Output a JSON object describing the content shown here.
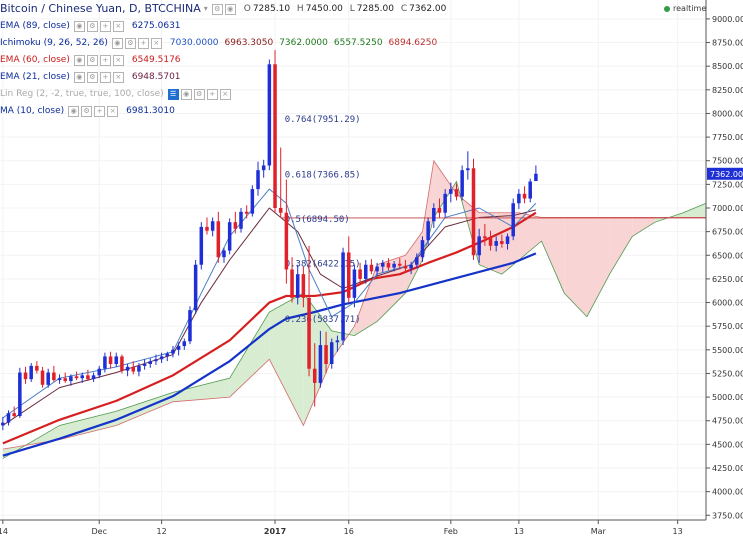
{
  "header": {
    "title": "Bitcoin / Chinese Yuan, D, BTCCHINA",
    "ohlc": [
      {
        "k": "O",
        "v": "7285.10"
      },
      {
        "k": "H",
        "v": "7450.00"
      },
      {
        "k": "L",
        "v": "7285.00"
      },
      {
        "k": "C",
        "v": "7362.00"
      }
    ],
    "realtime": "realtime"
  },
  "indicators": [
    {
      "name": "EMA (89, close)",
      "color": "#0b2b9c",
      "values": [
        {
          "text": "6275.0631",
          "color": "#0b2b9c"
        }
      ]
    },
    {
      "name": "Ichimoku (9, 26, 52, 26)",
      "color": "#0b2b9c",
      "values": [
        {
          "text": "7030.0000",
          "color": "#1f53c7"
        },
        {
          "text": "6963.3050",
          "color": "#8a1a1a"
        },
        {
          "text": "7362.0000",
          "color": "#1f7a1f"
        },
        {
          "text": "6557.5250",
          "color": "#1f7a1f"
        },
        {
          "text": "6894.6250",
          "color": "#c03030"
        }
      ]
    },
    {
      "name": "EMA (60, close)",
      "color": "#cc1a1a",
      "values": [
        {
          "text": "6549.5176",
          "color": "#cc1a1a"
        }
      ]
    },
    {
      "name": "EMA (21, close)",
      "color": "#0b2b9c",
      "values": [
        {
          "text": "6948.5701",
          "color": "#6b1e3e"
        }
      ]
    },
    {
      "name": "Lin Reg (2, -2, true, true, 100, close)",
      "color": "#aaaaaa",
      "values": []
    },
    {
      "name": "MA (10, close)",
      "color": "#0b2b9c",
      "values": [
        {
          "text": "6981.3010",
          "color": "#0b2b9c"
        }
      ]
    }
  ],
  "chart_data": {
    "type": "candlestick",
    "y_axis": {
      "ylim": [
        3700,
        9200
      ],
      "ticks": [
        "9000.00",
        "8750.00",
        "8500.00",
        "8250.00",
        "8000.00",
        "7750.00",
        "7500.00",
        "7250.00",
        "7000.00",
        "6750.00",
        "6500.00",
        "6250.00",
        "6000.00",
        "5750.00",
        "5500.00",
        "5250.00",
        "5000.00",
        "4750.00",
        "4500.00",
        "4250.00",
        "4000.00",
        "3750.00"
      ],
      "last_price": "7362.00",
      "last_price_value": 7362
    },
    "x_axis": {
      "labels": [
        "14",
        "Dec",
        "12",
        "2017",
        "16",
        "Feb",
        "13",
        "Mar",
        "13"
      ],
      "label_days": [
        0,
        17,
        28,
        48,
        61,
        79,
        91,
        105,
        119
      ]
    },
    "candles": [
      {
        "d": 0,
        "o": 4700,
        "h": 4790,
        "l": 4650,
        "c": 4730
      },
      {
        "d": 1,
        "o": 4730,
        "h": 4860,
        "l": 4700,
        "c": 4830
      },
      {
        "d": 2,
        "o": 4830,
        "h": 4900,
        "l": 4780,
        "c": 4800
      },
      {
        "d": 3,
        "o": 4800,
        "h": 5310,
        "l": 4780,
        "c": 5260
      },
      {
        "d": 4,
        "o": 5260,
        "h": 5320,
        "l": 5140,
        "c": 5190
      },
      {
        "d": 5,
        "o": 5190,
        "h": 5360,
        "l": 5160,
        "c": 5330
      },
      {
        "d": 6,
        "o": 5330,
        "h": 5380,
        "l": 5250,
        "c": 5280
      },
      {
        "d": 7,
        "o": 5280,
        "h": 5320,
        "l": 5100,
        "c": 5130
      },
      {
        "d": 8,
        "o": 5130,
        "h": 5300,
        "l": 5100,
        "c": 5260
      },
      {
        "d": 9,
        "o": 5260,
        "h": 5330,
        "l": 5160,
        "c": 5180
      },
      {
        "d": 10,
        "o": 5180,
        "h": 5240,
        "l": 5140,
        "c": 5200
      },
      {
        "d": 11,
        "o": 5200,
        "h": 5260,
        "l": 5150,
        "c": 5170
      },
      {
        "d": 12,
        "o": 5170,
        "h": 5240,
        "l": 5120,
        "c": 5220
      },
      {
        "d": 13,
        "o": 5220,
        "h": 5270,
        "l": 5180,
        "c": 5200
      },
      {
        "d": 14,
        "o": 5200,
        "h": 5260,
        "l": 5150,
        "c": 5230
      },
      {
        "d": 15,
        "o": 5230,
        "h": 5290,
        "l": 5170,
        "c": 5190
      },
      {
        "d": 16,
        "o": 5190,
        "h": 5260,
        "l": 5160,
        "c": 5230
      },
      {
        "d": 17,
        "o": 5230,
        "h": 5330,
        "l": 5200,
        "c": 5300
      },
      {
        "d": 18,
        "o": 5300,
        "h": 5470,
        "l": 5260,
        "c": 5430
      },
      {
        "d": 19,
        "o": 5430,
        "h": 5480,
        "l": 5300,
        "c": 5350
      },
      {
        "d": 20,
        "o": 5350,
        "h": 5470,
        "l": 5320,
        "c": 5430
      },
      {
        "d": 21,
        "o": 5430,
        "h": 5450,
        "l": 5250,
        "c": 5280
      },
      {
        "d": 22,
        "o": 5280,
        "h": 5350,
        "l": 5220,
        "c": 5320
      },
      {
        "d": 23,
        "o": 5320,
        "h": 5380,
        "l": 5240,
        "c": 5270
      },
      {
        "d": 24,
        "o": 5270,
        "h": 5360,
        "l": 5220,
        "c": 5330
      },
      {
        "d": 25,
        "o": 5330,
        "h": 5400,
        "l": 5290,
        "c": 5350
      },
      {
        "d": 26,
        "o": 5350,
        "h": 5410,
        "l": 5310,
        "c": 5380
      },
      {
        "d": 27,
        "o": 5380,
        "h": 5450,
        "l": 5340,
        "c": 5400
      },
      {
        "d": 28,
        "o": 5400,
        "h": 5470,
        "l": 5360,
        "c": 5430
      },
      {
        "d": 29,
        "o": 5430,
        "h": 5480,
        "l": 5380,
        "c": 5460
      },
      {
        "d": 30,
        "o": 5460,
        "h": 5540,
        "l": 5420,
        "c": 5500
      },
      {
        "d": 31,
        "o": 5500,
        "h": 5580,
        "l": 5440,
        "c": 5540
      },
      {
        "d": 32,
        "o": 5540,
        "h": 5620,
        "l": 5500,
        "c": 5590
      },
      {
        "d": 33,
        "o": 5590,
        "h": 5960,
        "l": 5560,
        "c": 5920
      },
      {
        "d": 34,
        "o": 5920,
        "h": 6450,
        "l": 5880,
        "c": 6400
      },
      {
        "d": 35,
        "o": 6400,
        "h": 6850,
        "l": 6350,
        "c": 6800
      },
      {
        "d": 36,
        "o": 6800,
        "h": 6900,
        "l": 6720,
        "c": 6760
      },
      {
        "d": 37,
        "o": 6760,
        "h": 6900,
        "l": 6700,
        "c": 6860
      },
      {
        "d": 38,
        "o": 6860,
        "h": 6960,
        "l": 6420,
        "c": 6480
      },
      {
        "d": 39,
        "o": 6480,
        "h": 6580,
        "l": 6420,
        "c": 6550
      },
      {
        "d": 40,
        "o": 6550,
        "h": 6890,
        "l": 6510,
        "c": 6850
      },
      {
        "d": 41,
        "o": 6850,
        "h": 6960,
        "l": 6730,
        "c": 6780
      },
      {
        "d": 42,
        "o": 6780,
        "h": 7000,
        "l": 6740,
        "c": 6960
      },
      {
        "d": 43,
        "o": 6960,
        "h": 7030,
        "l": 6890,
        "c": 6940
      },
      {
        "d": 44,
        "o": 6940,
        "h": 7240,
        "l": 6910,
        "c": 7200
      },
      {
        "d": 45,
        "o": 7200,
        "h": 7490,
        "l": 7130,
        "c": 7400
      },
      {
        "d": 46,
        "o": 7400,
        "h": 7510,
        "l": 7320,
        "c": 7450
      },
      {
        "d": 47,
        "o": 7450,
        "h": 8570,
        "l": 7400,
        "c": 8520
      },
      {
        "d": 48,
        "o": 8520,
        "h": 8670,
        "l": 6950,
        "c": 7000
      },
      {
        "d": 49,
        "o": 7000,
        "h": 7640,
        "l": 6900,
        "c": 6950
      },
      {
        "d": 50,
        "o": 6950,
        "h": 7300,
        "l": 6200,
        "c": 6350
      },
      {
        "d": 51,
        "o": 6350,
        "h": 6480,
        "l": 6000,
        "c": 6050
      },
      {
        "d": 52,
        "o": 6050,
        "h": 6400,
        "l": 5980,
        "c": 6300
      },
      {
        "d": 53,
        "o": 6300,
        "h": 6380,
        "l": 5950,
        "c": 6050
      },
      {
        "d": 54,
        "o": 6050,
        "h": 6600,
        "l": 5220,
        "c": 5300
      },
      {
        "d": 55,
        "o": 5300,
        "h": 5570,
        "l": 4900,
        "c": 5150
      },
      {
        "d": 56,
        "o": 5150,
        "h": 5700,
        "l": 5100,
        "c": 5550
      },
      {
        "d": 57,
        "o": 5550,
        "h": 5690,
        "l": 5250,
        "c": 5350
      },
      {
        "d": 58,
        "o": 5350,
        "h": 5620,
        "l": 5300,
        "c": 5580
      },
      {
        "d": 59,
        "o": 5580,
        "h": 5650,
        "l": 5480,
        "c": 5600
      },
      {
        "d": 60,
        "o": 5600,
        "h": 6580,
        "l": 5550,
        "c": 6530
      },
      {
        "d": 61,
        "o": 6530,
        "h": 6700,
        "l": 6000,
        "c": 6050
      },
      {
        "d": 62,
        "o": 6050,
        "h": 6400,
        "l": 5950,
        "c": 6350
      },
      {
        "d": 63,
        "o": 6350,
        "h": 6420,
        "l": 6200,
        "c": 6250
      },
      {
        "d": 64,
        "o": 6250,
        "h": 6450,
        "l": 6200,
        "c": 6400
      },
      {
        "d": 65,
        "o": 6400,
        "h": 6460,
        "l": 6300,
        "c": 6330
      },
      {
        "d": 66,
        "o": 6330,
        "h": 6420,
        "l": 6280,
        "c": 6380
      },
      {
        "d": 67,
        "o": 6380,
        "h": 6450,
        "l": 6320,
        "c": 6420
      },
      {
        "d": 68,
        "o": 6420,
        "h": 6470,
        "l": 6340,
        "c": 6370
      },
      {
        "d": 69,
        "o": 6370,
        "h": 6440,
        "l": 6330,
        "c": 6410
      },
      {
        "d": 70,
        "o": 6410,
        "h": 6470,
        "l": 6350,
        "c": 6390
      },
      {
        "d": 71,
        "o": 6390,
        "h": 6450,
        "l": 6320,
        "c": 6360
      },
      {
        "d": 72,
        "o": 6360,
        "h": 6430,
        "l": 6300,
        "c": 6400
      },
      {
        "d": 73,
        "o": 6400,
        "h": 6520,
        "l": 6360,
        "c": 6480
      },
      {
        "d": 74,
        "o": 6480,
        "h": 6700,
        "l": 6430,
        "c": 6660
      },
      {
        "d": 75,
        "o": 6660,
        "h": 6900,
        "l": 6600,
        "c": 6860
      },
      {
        "d": 76,
        "o": 6860,
        "h": 7050,
        "l": 6790,
        "c": 7000
      },
      {
        "d": 77,
        "o": 7000,
        "h": 7100,
        "l": 6900,
        "c": 6950
      },
      {
        "d": 78,
        "o": 6950,
        "h": 7200,
        "l": 6900,
        "c": 7150
      },
      {
        "d": 79,
        "o": 7150,
        "h": 7270,
        "l": 7060,
        "c": 7200
      },
      {
        "d": 80,
        "o": 7200,
        "h": 7260,
        "l": 7080,
        "c": 7120
      },
      {
        "d": 81,
        "o": 7120,
        "h": 7450,
        "l": 7080,
        "c": 7400
      },
      {
        "d": 82,
        "o": 7400,
        "h": 7600,
        "l": 7300,
        "c": 7420
      },
      {
        "d": 83,
        "o": 7420,
        "h": 7520,
        "l": 6450,
        "c": 6500
      },
      {
        "d": 84,
        "o": 6500,
        "h": 6780,
        "l": 6420,
        "c": 6700
      },
      {
        "d": 85,
        "o": 6700,
        "h": 6830,
        "l": 6600,
        "c": 6680
      },
      {
        "d": 86,
        "o": 6680,
        "h": 6760,
        "l": 6550,
        "c": 6600
      },
      {
        "d": 87,
        "o": 6600,
        "h": 6700,
        "l": 6540,
        "c": 6650
      },
      {
        "d": 88,
        "o": 6650,
        "h": 6720,
        "l": 6580,
        "c": 6620
      },
      {
        "d": 89,
        "o": 6620,
        "h": 6730,
        "l": 6560,
        "c": 6700
      },
      {
        "d": 90,
        "o": 6700,
        "h": 7100,
        "l": 6660,
        "c": 7050
      },
      {
        "d": 91,
        "o": 7050,
        "h": 7200,
        "l": 6990,
        "c": 7150
      },
      {
        "d": 92,
        "o": 7150,
        "h": 7230,
        "l": 7050,
        "c": 7100
      },
      {
        "d": 93,
        "o": 7100,
        "h": 7310,
        "l": 7060,
        "c": 7280
      },
      {
        "d": 94,
        "o": 7285.1,
        "h": 7450,
        "l": 7285,
        "c": 7362
      }
    ],
    "series": [
      {
        "kind": "ema",
        "color": "#1433c8",
        "width": 2.2,
        "points": [
          [
            0,
            4380
          ],
          [
            10,
            4560
          ],
          [
            20,
            4760
          ],
          [
            30,
            5010
          ],
          [
            40,
            5380
          ],
          [
            47,
            5720
          ],
          [
            50,
            5830
          ],
          [
            55,
            5900
          ],
          [
            60,
            5980
          ],
          [
            70,
            6100
          ],
          [
            80,
            6260
          ],
          [
            90,
            6420
          ],
          [
            94,
            6520
          ]
        ]
      },
      {
        "kind": "ema",
        "color": "#d62020",
        "width": 2.2,
        "points": [
          [
            0,
            4510
          ],
          [
            10,
            4760
          ],
          [
            20,
            4960
          ],
          [
            30,
            5230
          ],
          [
            40,
            5600
          ],
          [
            47,
            6000
          ],
          [
            50,
            6070
          ],
          [
            55,
            6070
          ],
          [
            60,
            6110
          ],
          [
            65,
            6250
          ],
          [
            70,
            6300
          ],
          [
            75,
            6420
          ],
          [
            80,
            6530
          ],
          [
            85,
            6660
          ],
          [
            90,
            6800
          ],
          [
            94,
            6950
          ]
        ]
      },
      {
        "kind": "ema",
        "color": "#6a2a3a",
        "width": 1,
        "points": [
          [
            0,
            4700
          ],
          [
            10,
            5100
          ],
          [
            20,
            5260
          ],
          [
            30,
            5450
          ],
          [
            35,
            6000
          ],
          [
            40,
            6450
          ],
          [
            47,
            7000
          ],
          [
            52,
            6750
          ],
          [
            56,
            6300
          ],
          [
            60,
            6150
          ],
          [
            66,
            6280
          ],
          [
            72,
            6400
          ],
          [
            78,
            6800
          ],
          [
            84,
            6900
          ],
          [
            90,
            6920
          ],
          [
            94,
            6980
          ]
        ]
      },
      {
        "kind": "ma",
        "color": "#4a7fc6",
        "width": 1,
        "points": [
          [
            0,
            4780
          ],
          [
            10,
            5200
          ],
          [
            20,
            5320
          ],
          [
            30,
            5480
          ],
          [
            35,
            6100
          ],
          [
            40,
            6700
          ],
          [
            47,
            7200
          ],
          [
            50,
            7050
          ],
          [
            54,
            6350
          ],
          [
            58,
            5850
          ],
          [
            62,
            6000
          ],
          [
            66,
            6300
          ],
          [
            72,
            6400
          ],
          [
            78,
            6900
          ],
          [
            84,
            7000
          ],
          [
            90,
            6800
          ],
          [
            94,
            7050
          ]
        ]
      }
    ],
    "ichimoku": {
      "cloud": [
        [
          0,
          4350,
          4450
        ],
        [
          10,
          4700,
          4550
        ],
        [
          20,
          4850,
          4700
        ],
        [
          30,
          5050,
          4950
        ],
        [
          40,
          5200,
          5000
        ],
        [
          47,
          5900,
          5400
        ],
        [
          53,
          6100,
          4700
        ],
        [
          58,
          5700,
          5400
        ],
        [
          62,
          5650,
          5750
        ],
        [
          66,
          5800,
          6400
        ],
        [
          71,
          6100,
          6500
        ],
        [
          74,
          6450,
          6750
        ],
        [
          76,
          6900,
          7500
        ],
        [
          80,
          7280,
          7150
        ],
        [
          84,
          6400,
          6950
        ],
        [
          88,
          6300,
          6950
        ],
        [
          91,
          6450,
          6950
        ],
        [
          95,
          6650,
          6900
        ],
        [
          99,
          6100,
          6900
        ],
        [
          103,
          5850,
          6900
        ],
        [
          107,
          6300,
          6900
        ],
        [
          111,
          6700,
          6900
        ],
        [
          115,
          6850,
          6900
        ],
        [
          120,
          6950,
          6900
        ],
        [
          124,
          7050,
          6900
        ]
      ]
    },
    "fibonacci": [
      {
        "label": "0.764(7951.29)",
        "value": 7951.29,
        "d": 49
      },
      {
        "label": "0.618(7366.85)",
        "value": 7366.85,
        "d": 49
      },
      {
        "label": "0.5(6894.50)",
        "value": 6894.5,
        "d": 49
      },
      {
        "label": "0.382(6422.15)",
        "value": 6422.15,
        "d": 49
      },
      {
        "label": "0.236(5837.71)",
        "value": 5837.71,
        "d": 49
      }
    ]
  }
}
